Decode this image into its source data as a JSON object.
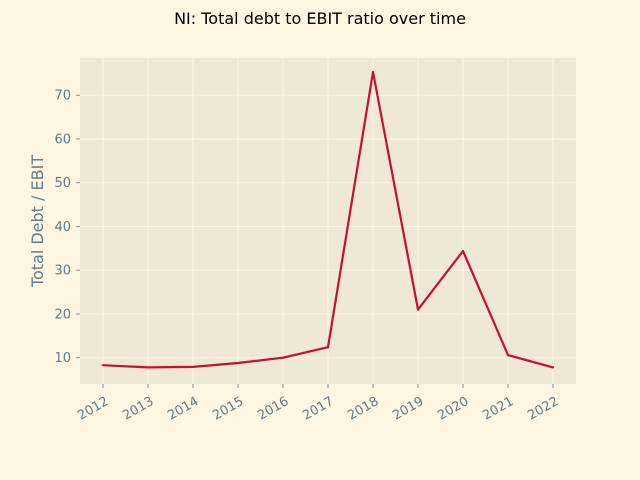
{
  "chart_data": {
    "type": "line",
    "title": "NI: Total debt to EBIT ratio over time",
    "xlabel": "",
    "ylabel": "Total Debt / EBIT",
    "x": [
      "2012",
      "2013",
      "2014",
      "2015",
      "2016",
      "2017",
      "2018",
      "2019",
      "2020",
      "2021",
      "2022"
    ],
    "series": [
      {
        "values": [
          8.3,
          7.8,
          7.9,
          8.8,
          10.0,
          12.4,
          75.3,
          21.0,
          34.4,
          10.6,
          7.8
        ]
      }
    ],
    "xlim": [
      "2012",
      "2022"
    ],
    "ylim": [
      4,
      78.5
    ],
    "yticks": [
      10,
      20,
      30,
      40,
      50,
      60,
      70
    ],
    "grid": true,
    "legend": "none"
  },
  "colors": {
    "figure_background": "#fdf6e3",
    "plot_background": "#eee8d5",
    "grid": "#fdf6e3",
    "line": "#c8102e",
    "tick_text": "#657b83",
    "title_text": "#000000"
  }
}
